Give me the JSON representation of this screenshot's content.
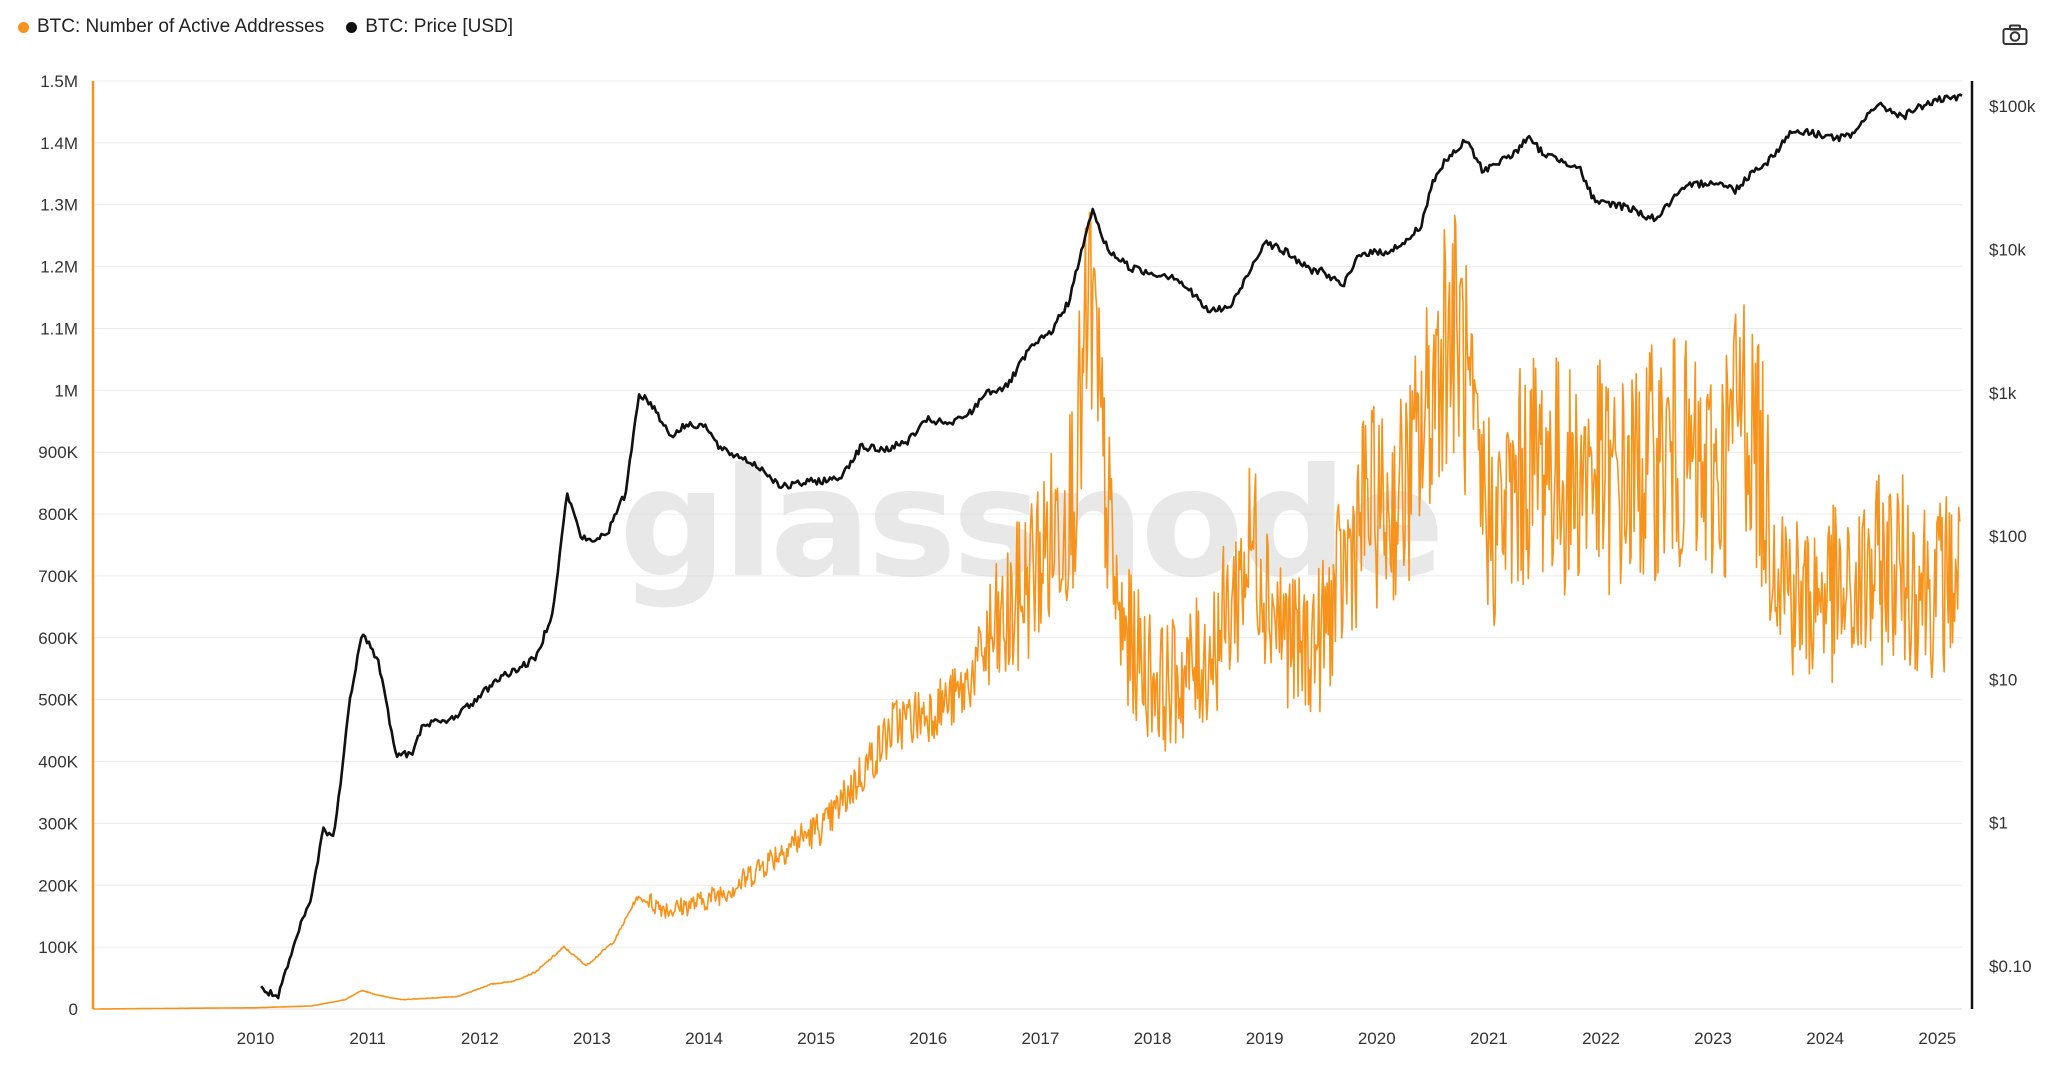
{
  "legend": {
    "items": [
      {
        "label": "BTC: Number of Active Addresses",
        "color": "#f7931a"
      },
      {
        "label": "BTC: Price [USD]",
        "color": "#111111"
      }
    ]
  },
  "watermark": "glassnode",
  "toolbar": {
    "camera_icon": "camera-icon"
  },
  "chart_data": {
    "type": "line",
    "title": "",
    "xlabel": "",
    "ylabel": "",
    "x_ticks": [
      "2010",
      "2011",
      "2012",
      "2013",
      "2014",
      "2015",
      "2016",
      "2017",
      "2018",
      "2019",
      "2020",
      "2021",
      "2022",
      "2023",
      "2024",
      "2025"
    ],
    "x_range": [
      2009.05,
      2025.72
    ],
    "y_left": {
      "range": [
        0,
        1500000
      ],
      "ticks": [
        0,
        100000,
        200000,
        300000,
        400000,
        500000,
        600000,
        700000,
        800000,
        900000,
        1000000,
        1100000,
        1200000,
        1300000,
        1400000,
        1500000
      ],
      "tick_labels": [
        "0",
        "100K",
        "200K",
        "300K",
        "400K",
        "500K",
        "600K",
        "700K",
        "800K",
        "900K",
        "1M",
        "1.1M",
        "1.2M",
        "1.3M",
        "1.4M",
        "1.5M"
      ]
    },
    "y_right": {
      "scale": "log",
      "range": [
        0.05,
        150000
      ],
      "ticks": [
        0.1,
        1,
        10,
        100,
        1000,
        10000,
        100000
      ],
      "tick_labels": [
        "$0.10",
        "$1",
        "$10",
        "$100",
        "$1k",
        "$10k",
        "$100k"
      ]
    },
    "grid": true,
    "series": [
      {
        "name": "BTC: Number of Active Addresses",
        "axis": "left",
        "color": "#f7931a",
        "x": [
          2009.05,
          2010.5,
          2011.0,
          2011.3,
          2011.45,
          2011.6,
          2011.8,
          2012.0,
          2012.3,
          2012.6,
          2012.8,
          2013.0,
          2013.25,
          2013.45,
          2013.7,
          2013.9,
          2014.2,
          2014.5,
          2014.8,
          2015.0,
          2015.3,
          2015.6,
          2015.9,
          2016.2,
          2016.5,
          2016.8,
          2017.0,
          2017.2,
          2017.4,
          2017.6,
          2017.8,
          2017.95,
          2018.05,
          2018.2,
          2018.4,
          2018.6,
          2018.8,
          2019.0,
          2019.2,
          2019.4,
          2019.6,
          2019.8,
          2020.0,
          2020.2,
          2020.4,
          2020.6,
          2020.8,
          2021.0,
          2021.1,
          2021.25,
          2021.4,
          2021.55,
          2021.7,
          2021.85,
          2022.0,
          2022.2,
          2022.4,
          2022.6,
          2022.8,
          2023.0,
          2023.2,
          2023.4,
          2023.6,
          2023.75,
          2023.9,
          2024.0,
          2024.15,
          2024.3,
          2024.5,
          2024.7,
          2024.9,
          2025.1,
          2025.3,
          2025.5,
          2025.7
        ],
        "values": [
          0,
          2000,
          5000,
          15000,
          30000,
          22000,
          15000,
          17000,
          20000,
          40000,
          45000,
          60000,
          100000,
          70000,
          110000,
          180000,
          160000,
          175000,
          200000,
          230000,
          270000,
          300000,
          380000,
          460000,
          480000,
          510000,
          580000,
          620000,
          700000,
          760000,
          850000,
          1150000,
          900000,
          620000,
          560000,
          520000,
          540000,
          570000,
          650000,
          760000,
          640000,
          580000,
          600000,
          700000,
          820000,
          800000,
          860000,
          1000000,
          1100000,
          1080000,
          850000,
          780000,
          820000,
          880000,
          890000,
          850000,
          880000,
          840000,
          860000,
          890000,
          900000,
          850000,
          880000,
          1000000,
          900000,
          800000,
          700000,
          650000,
          680000,
          650000,
          700000,
          720000,
          700000,
          680000,
          710000
        ]
      },
      {
        "name": "BTC: Price [USD]",
        "axis": "right",
        "color": "#111111",
        "x": [
          2010.55,
          2010.7,
          2010.9,
          2011.0,
          2011.1,
          2011.2,
          2011.35,
          2011.45,
          2011.6,
          2011.75,
          2011.9,
          2012.0,
          2012.2,
          2012.45,
          2012.65,
          2012.85,
          2013.0,
          2013.15,
          2013.28,
          2013.4,
          2013.5,
          2013.65,
          2013.8,
          2013.92,
          2014.05,
          2014.2,
          2014.35,
          2014.5,
          2014.65,
          2014.85,
          2015.0,
          2015.2,
          2015.45,
          2015.7,
          2015.9,
          2016.1,
          2016.3,
          2016.5,
          2016.7,
          2016.9,
          2017.0,
          2017.2,
          2017.4,
          2017.6,
          2017.75,
          2017.9,
          2017.96,
          2018.1,
          2018.3,
          2018.5,
          2018.7,
          2018.85,
          2019.0,
          2019.2,
          2019.4,
          2019.5,
          2019.7,
          2019.9,
          2020.0,
          2020.2,
          2020.35,
          2020.55,
          2020.75,
          2020.9,
          2021.0,
          2021.1,
          2021.3,
          2021.45,
          2021.55,
          2021.7,
          2021.85,
          2022.0,
          2022.15,
          2022.3,
          2022.45,
          2022.6,
          2022.8,
          2022.9,
          2023.0,
          2023.15,
          2023.3,
          2023.5,
          2023.7,
          2023.85,
          2024.0,
          2024.2,
          2024.4,
          2024.6,
          2024.75,
          2024.9,
          2025.0,
          2025.2,
          2025.35,
          2025.5,
          2025.72
        ],
        "values": [
          0.07,
          0.06,
          0.19,
          0.3,
          0.9,
          0.8,
          8,
          22,
          13,
          3,
          3,
          5,
          5,
          7,
          10,
          12,
          14,
          30,
          200,
          100,
          90,
          110,
          200,
          1000,
          800,
          500,
          600,
          600,
          400,
          350,
          300,
          220,
          240,
          250,
          420,
          400,
          450,
          650,
          600,
          750,
          1000,
          1100,
          2000,
          2700,
          4300,
          12000,
          19000,
          10000,
          7500,
          6800,
          6500,
          5000,
          3700,
          4000,
          8000,
          11500,
          9500,
          7200,
          7200,
          5500,
          9500,
          9500,
          11000,
          15000,
          30000,
          40000,
          58000,
          35000,
          40000,
          45000,
          60000,
          46000,
          42000,
          38000,
          21000,
          21000,
          19000,
          17000,
          16500,
          23000,
          28000,
          30000,
          26000,
          35000,
          42000,
          67000,
          65000,
          60000,
          62000,
          95000,
          100000,
          85000,
          100000,
          110000,
          115000
        ]
      }
    ]
  }
}
